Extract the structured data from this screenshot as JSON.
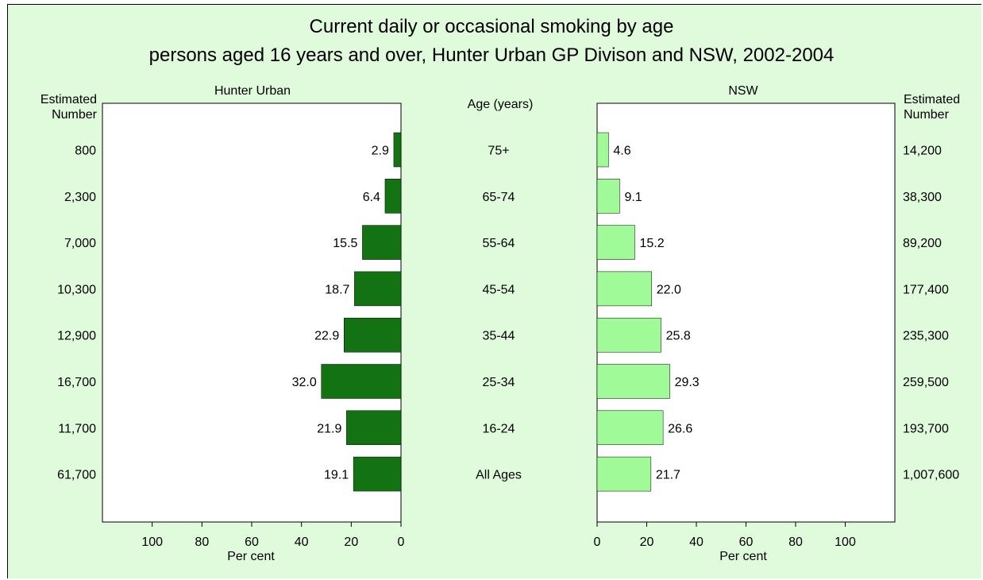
{
  "title_line1": "Current daily or occasional smoking by age",
  "title_line2": "persons aged 16 years and over, Hunter Urban  GP Divison and NSW, 2002-2004",
  "left_panel_title": "Hunter Urban",
  "right_panel_title": "NSW",
  "center_header": "Age (years)",
  "left_number_header_1": "Estimated",
  "left_number_header_2": "Number",
  "right_number_header_1": "Estimated",
  "right_number_header_2": "Number",
  "left_xlabel": "Per cent",
  "right_xlabel": "Per cent",
  "colors": {
    "hunter": "#137313",
    "nsw": "#a0fa98",
    "background": "#e0fadc"
  },
  "chart_data": {
    "type": "bar",
    "categories": [
      "75+",
      "65-74",
      "55-64",
      "45-54",
      "35-44",
      "25-34",
      "16-24",
      "All Ages"
    ],
    "series": [
      {
        "name": "Hunter Urban",
        "values": [
          2.9,
          6.4,
          15.5,
          18.7,
          22.9,
          32.0,
          21.9,
          19.1
        ],
        "color": "#137313"
      },
      {
        "name": "NSW",
        "values": [
          4.6,
          9.1,
          15.2,
          22.0,
          25.8,
          29.3,
          26.6,
          21.7
        ],
        "color": "#a0fa98"
      }
    ],
    "estimated_number_hunter": [
      "800",
      "2,300",
      "7,000",
      "10,300",
      "12,900",
      "16,700",
      "11,700",
      "61,700"
    ],
    "estimated_number_nsw": [
      "14,200",
      "38,300",
      "89,200",
      "177,400",
      "235,300",
      "259,500",
      "193,700",
      "1,007,600"
    ],
    "left_ticks": [
      "100",
      "80",
      "60",
      "40",
      "20",
      "0"
    ],
    "right_ticks": [
      "0",
      "20",
      "40",
      "60",
      "80",
      "100"
    ],
    "xlim": [
      0,
      120
    ]
  }
}
